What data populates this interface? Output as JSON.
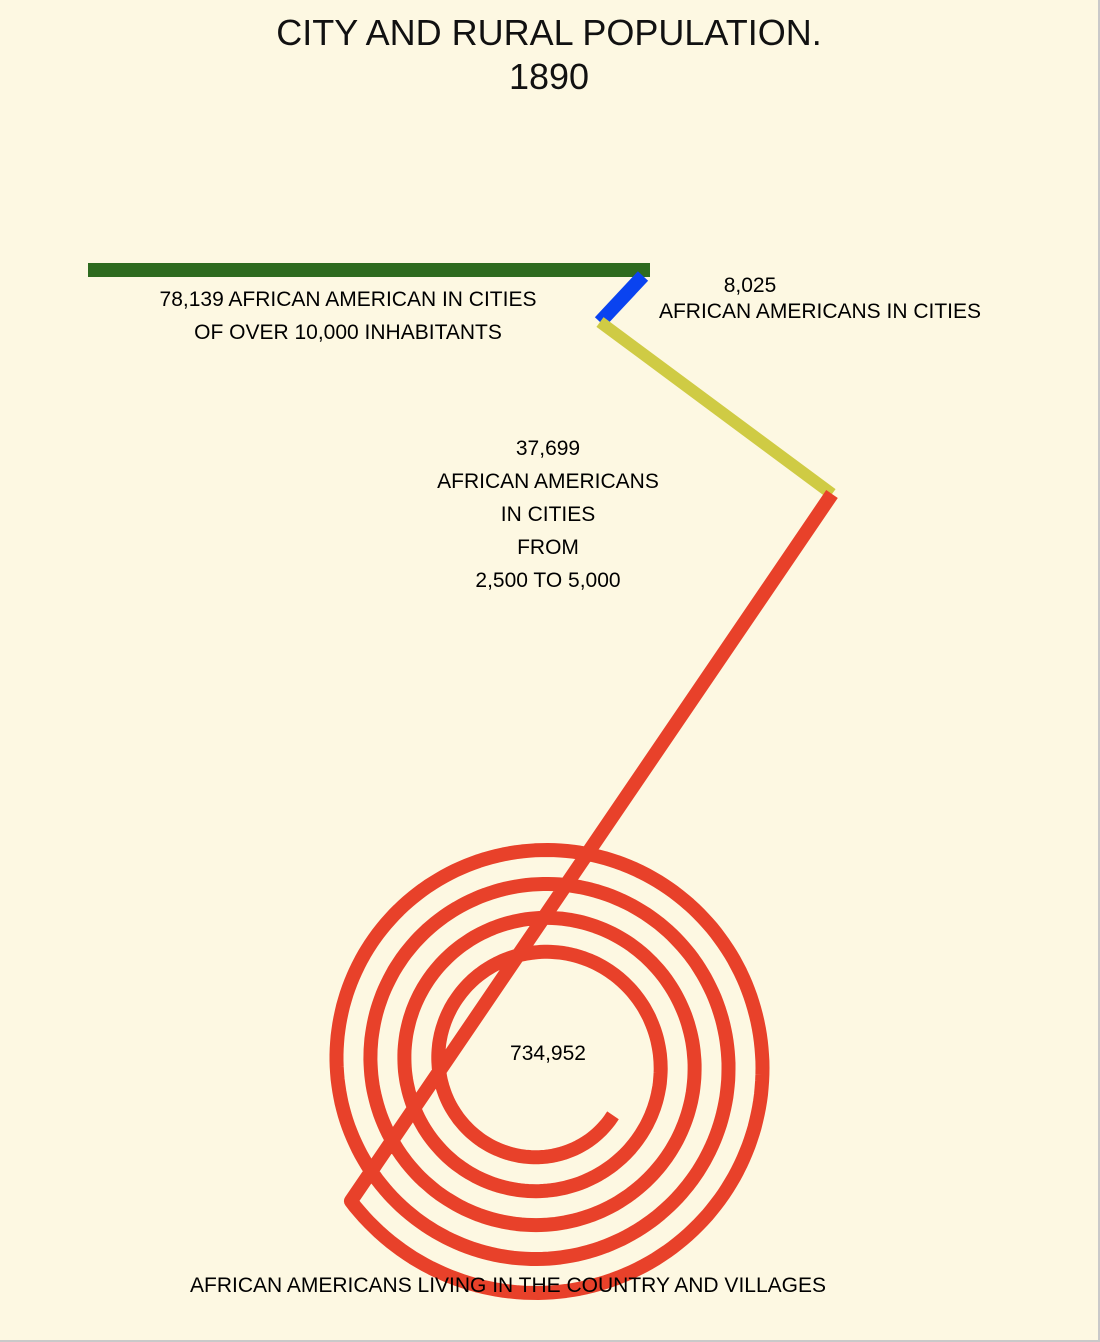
{
  "title": "CITY AND RURAL POPULATION.",
  "subtitle": "1890",
  "chart_data": {
    "type": "spiral",
    "title": "CITY AND RURAL POPULATION.",
    "subtitle": "1890",
    "series": [
      {
        "value": 78139,
        "value_text": "78,139",
        "label_lines": [
          "78,139 AFRICAN AMERICAN IN CITIES",
          "OF OVER 10,000 INHABITANTS"
        ],
        "color": "#2e6b1f"
      },
      {
        "value": 8025,
        "value_text": "8,025",
        "label_lines": [
          "8,025",
          "AFRICAN AMERICANS IN CITIES"
        ],
        "color": "#0a43f0"
      },
      {
        "value": 37699,
        "value_text": "37,699",
        "label_lines": [
          "37,699",
          "AFRICAN AMERICANS",
          "IN CITIES",
          "FROM",
          "2,500 TO 5,000"
        ],
        "color": "#cfcb44"
      },
      {
        "value": 734952,
        "value_text": "734,952",
        "label_lines": [
          "734,952"
        ],
        "color": "#e8412a"
      }
    ],
    "footer_label": "AFRICAN AMERICANS LIVING IN THE COUNTRY AND VILLAGES"
  }
}
